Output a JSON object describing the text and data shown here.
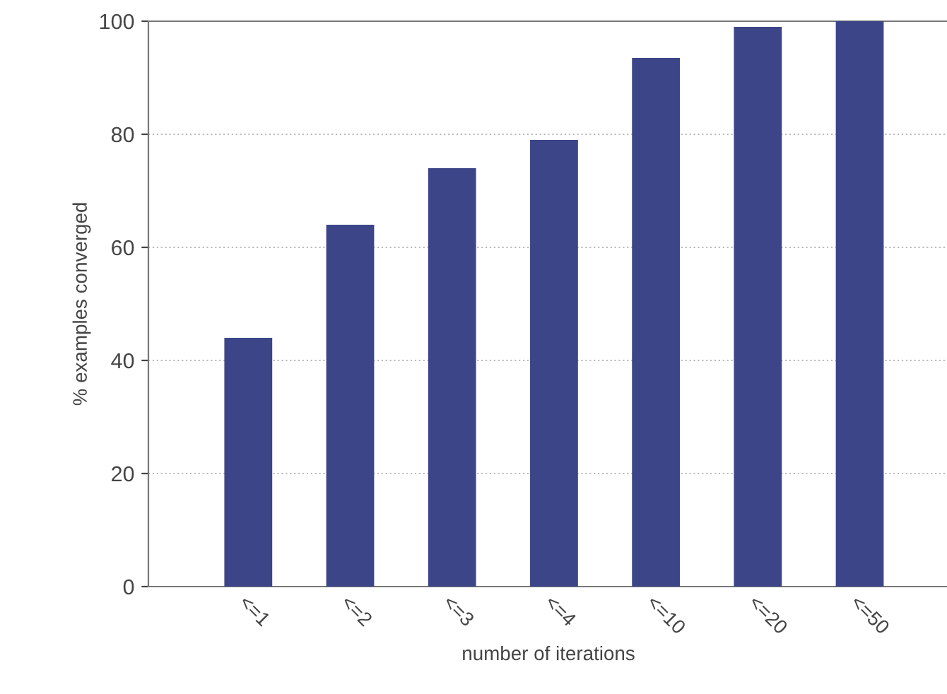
{
  "chart_data": {
    "type": "bar",
    "xlabel": "number of iterations",
    "ylabel": "% examples converged",
    "categories": [
      "<=1",
      "<=2",
      "<=3",
      "<=4",
      "<=10",
      "<=20",
      "<=50"
    ],
    "values": [
      44,
      64,
      74,
      79,
      93.5,
      99,
      100
    ],
    "color": "#3b4587",
    "ylim": [
      0,
      100
    ],
    "yticks": [
      0,
      20,
      40,
      60,
      80,
      100
    ],
    "grid": "y"
  }
}
